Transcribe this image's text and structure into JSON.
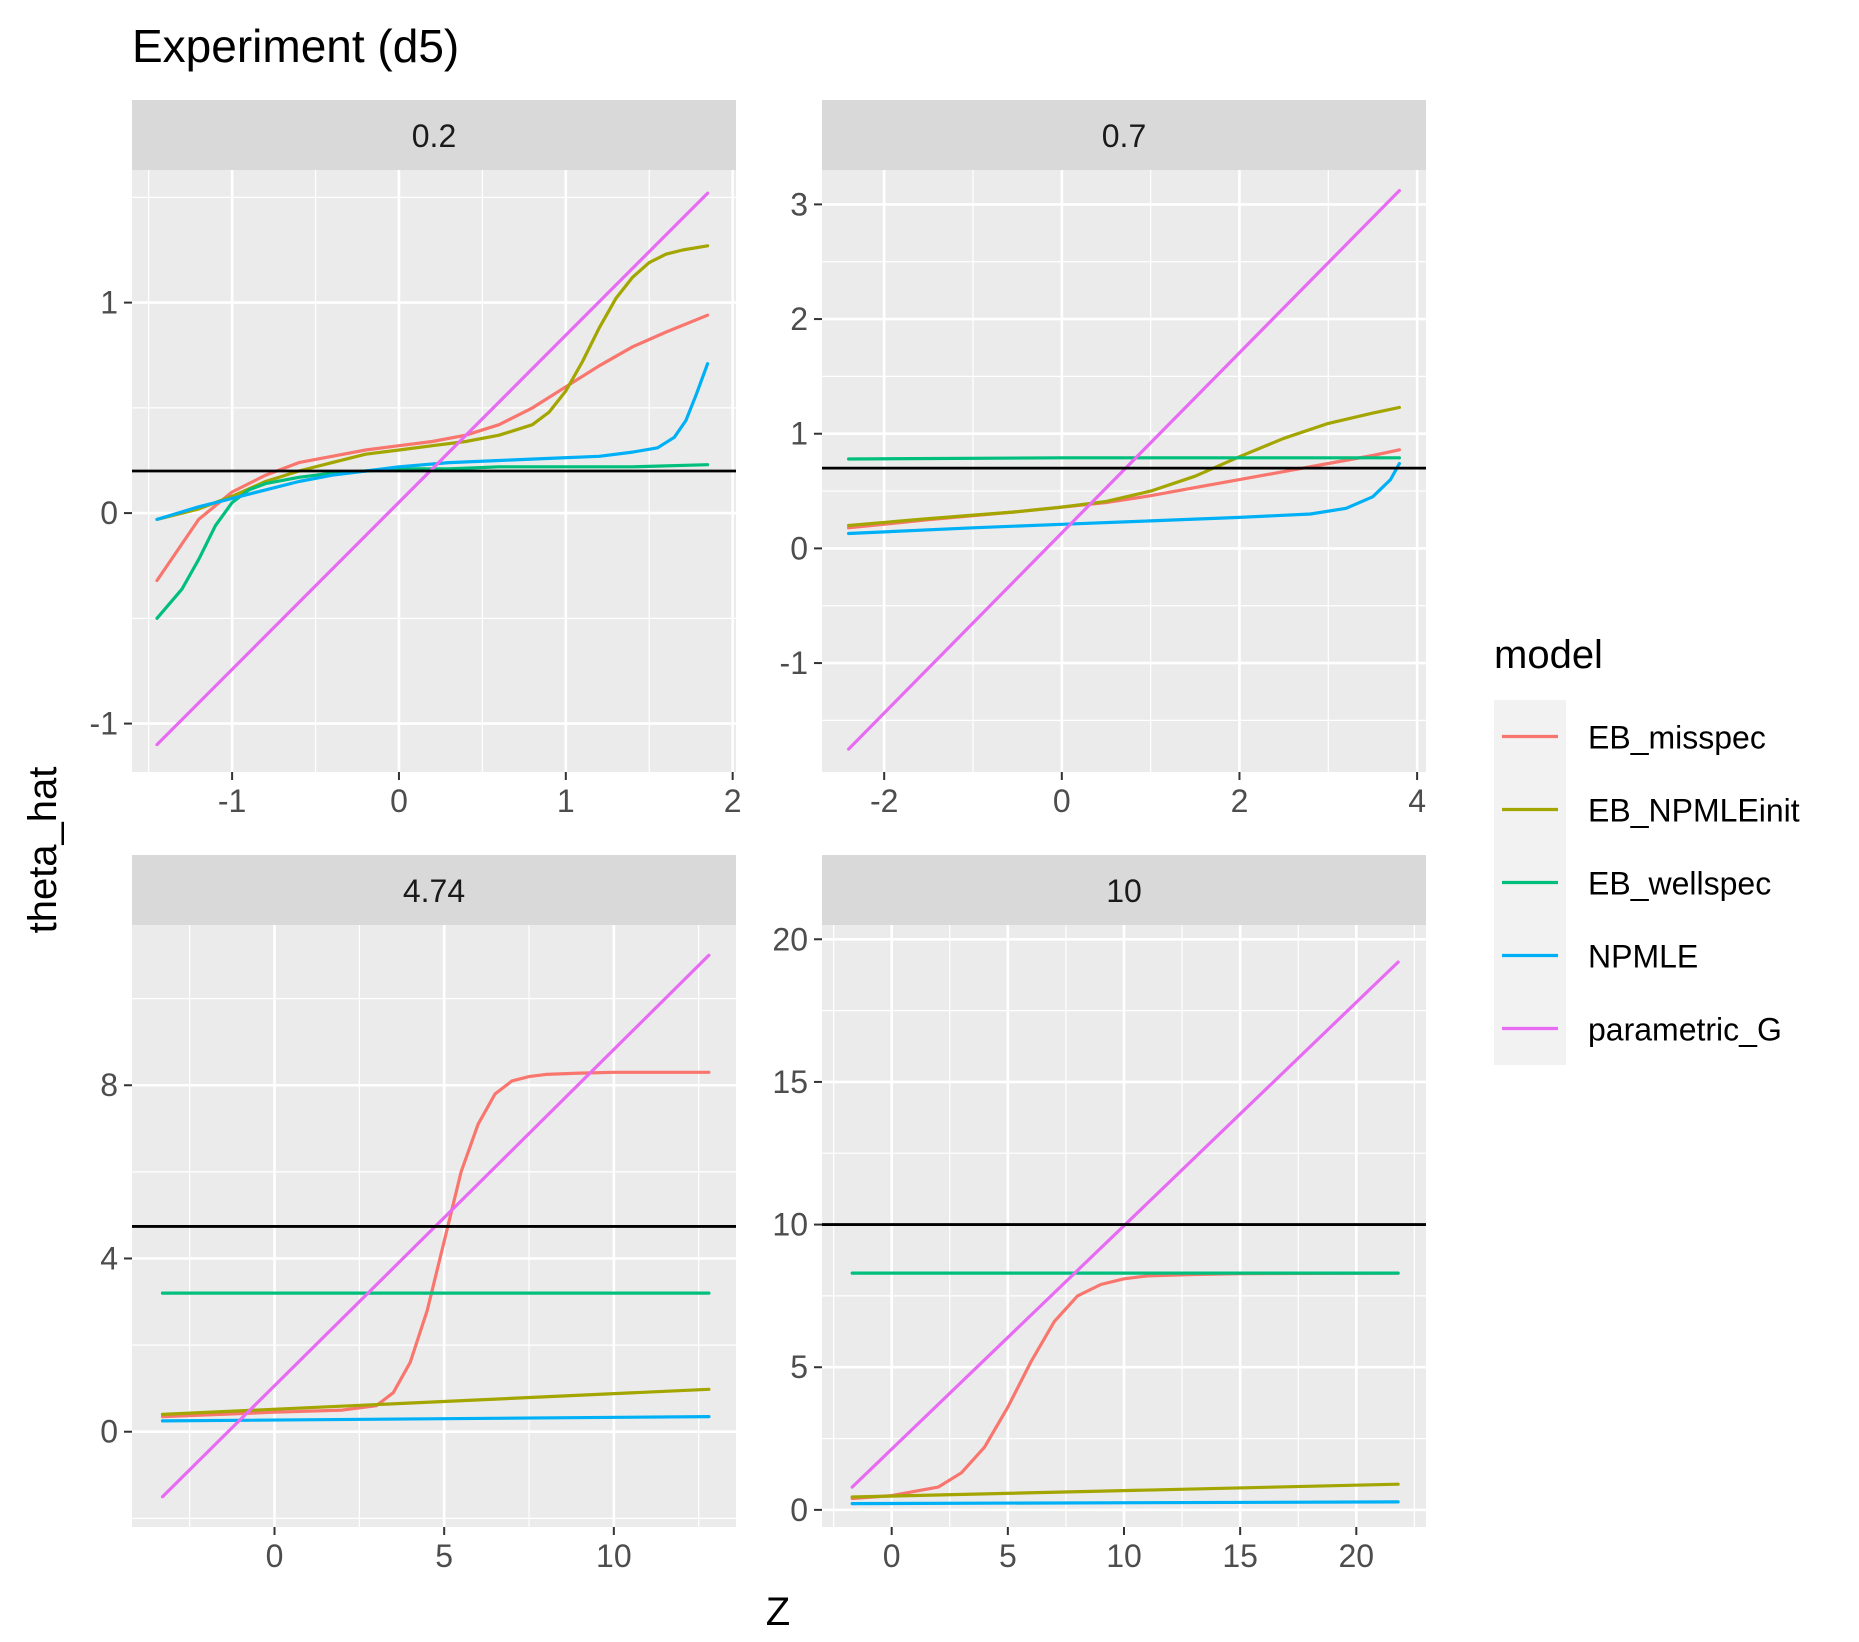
{
  "title": "Experiment (d5)",
  "xlabel": "Z",
  "ylabel": "theta_hat",
  "legend": {
    "title": "model",
    "placement": "right",
    "entries": [
      {
        "name": "EB_misspec",
        "color": "#F8766D"
      },
      {
        "name": "EB_NPMLEinit",
        "color": "#A3A500"
      },
      {
        "name": "EB_wellspec",
        "color": "#00BF7D"
      },
      {
        "name": "NPMLE",
        "color": "#00B0F6"
      },
      {
        "name": "parametric_G",
        "color": "#E76BF3"
      }
    ]
  },
  "colors": {
    "panel_background": "#EBEBEB",
    "strip_background": "#D9D9D9",
    "grid": "#FFFFFF",
    "reference_line": "#000000",
    "axis_text": "#4D4D4D"
  },
  "chart_data": [
    {
      "type": "line",
      "facet_label": "0.2",
      "grid": true,
      "xlim": [
        -1.6,
        2.02
      ],
      "ylim": [
        -1.23,
        1.63
      ],
      "xticks": [
        -1,
        0,
        1,
        2
      ],
      "yticks": [
        -1,
        0,
        1
      ],
      "hline": 0.2,
      "series": [
        {
          "name": "EB_misspec",
          "x": [
            -1.45,
            -1.2,
            -1.0,
            -0.8,
            -0.6,
            -0.4,
            -0.2,
            0.0,
            0.2,
            0.4,
            0.6,
            0.8,
            1.0,
            1.2,
            1.4,
            1.6,
            1.85
          ],
          "y": [
            -0.32,
            -0.03,
            0.1,
            0.18,
            0.24,
            0.27,
            0.3,
            0.32,
            0.34,
            0.37,
            0.42,
            0.5,
            0.6,
            0.7,
            0.79,
            0.86,
            0.94
          ]
        },
        {
          "name": "EB_NPMLEinit",
          "x": [
            -1.45,
            -1.2,
            -1.0,
            -0.8,
            -0.6,
            -0.4,
            -0.2,
            0.0,
            0.2,
            0.4,
            0.6,
            0.8,
            0.9,
            1.0,
            1.1,
            1.2,
            1.3,
            1.4,
            1.5,
            1.6,
            1.7,
            1.85
          ],
          "y": [
            -0.03,
            0.02,
            0.08,
            0.15,
            0.2,
            0.24,
            0.28,
            0.3,
            0.32,
            0.34,
            0.37,
            0.42,
            0.48,
            0.58,
            0.72,
            0.88,
            1.02,
            1.12,
            1.19,
            1.23,
            1.25,
            1.27
          ]
        },
        {
          "name": "EB_wellspec",
          "x": [
            -1.45,
            -1.3,
            -1.2,
            -1.1,
            -1.0,
            -0.9,
            -0.8,
            -0.6,
            -0.4,
            -0.2,
            0.0,
            0.3,
            0.6,
            1.0,
            1.4,
            1.85
          ],
          "y": [
            -0.5,
            -0.36,
            -0.22,
            -0.06,
            0.05,
            0.11,
            0.14,
            0.17,
            0.19,
            0.2,
            0.21,
            0.21,
            0.22,
            0.22,
            0.22,
            0.23
          ]
        },
        {
          "name": "NPMLE",
          "x": [
            -1.45,
            -1.2,
            -1.0,
            -0.8,
            -0.6,
            -0.4,
            -0.2,
            0.0,
            0.3,
            0.6,
            0.9,
            1.2,
            1.4,
            1.55,
            1.65,
            1.72,
            1.78,
            1.85
          ],
          "y": [
            -0.03,
            0.03,
            0.07,
            0.11,
            0.15,
            0.18,
            0.2,
            0.22,
            0.24,
            0.25,
            0.26,
            0.27,
            0.29,
            0.31,
            0.36,
            0.44,
            0.56,
            0.71
          ]
        },
        {
          "name": "parametric_G",
          "x": [
            -1.45,
            1.85
          ],
          "y": [
            -1.1,
            1.52
          ]
        }
      ]
    },
    {
      "type": "line",
      "facet_label": "0.7",
      "grid": true,
      "xlim": [
        -2.7,
        4.1
      ],
      "ylim": [
        -1.95,
        3.3
      ],
      "xticks": [
        -2,
        0,
        2,
        4
      ],
      "yticks": [
        -1,
        0,
        1,
        2,
        3
      ],
      "hline": 0.7,
      "series": [
        {
          "name": "EB_misspec",
          "x": [
            -2.4,
            -1.5,
            -0.5,
            0.0,
            0.5,
            1.0,
            1.5,
            2.0,
            2.5,
            3.0,
            3.5,
            3.8
          ],
          "y": [
            0.18,
            0.25,
            0.32,
            0.36,
            0.4,
            0.46,
            0.53,
            0.6,
            0.67,
            0.74,
            0.81,
            0.86
          ]
        },
        {
          "name": "EB_NPMLEinit",
          "x": [
            -2.4,
            -1.5,
            -0.5,
            0.0,
            0.5,
            1.0,
            1.5,
            2.0,
            2.5,
            3.0,
            3.5,
            3.8
          ],
          "y": [
            0.2,
            0.26,
            0.32,
            0.36,
            0.41,
            0.5,
            0.63,
            0.8,
            0.96,
            1.09,
            1.18,
            1.23
          ]
        },
        {
          "name": "EB_wellspec",
          "x": [
            -2.4,
            0.0,
            2.0,
            3.8
          ],
          "y": [
            0.78,
            0.79,
            0.79,
            0.79
          ]
        },
        {
          "name": "NPMLE",
          "x": [
            -2.4,
            -1.0,
            0.0,
            1.0,
            2.0,
            2.8,
            3.2,
            3.5,
            3.7,
            3.8
          ],
          "y": [
            0.13,
            0.18,
            0.21,
            0.24,
            0.27,
            0.3,
            0.35,
            0.45,
            0.6,
            0.74
          ]
        },
        {
          "name": "parametric_G",
          "x": [
            -2.4,
            3.8
          ],
          "y": [
            -1.75,
            3.12
          ]
        }
      ]
    },
    {
      "type": "line",
      "facet_label": "4.74",
      "grid": true,
      "xlim": [
        -4.2,
        13.6
      ],
      "ylim": [
        -2.2,
        11.7
      ],
      "xticks": [
        0,
        5,
        10
      ],
      "yticks": [
        0,
        4,
        8
      ],
      "hline": 4.74,
      "series": [
        {
          "name": "EB_misspec",
          "x": [
            -3.3,
            0.0,
            2.0,
            3.0,
            3.5,
            4.0,
            4.5,
            5.0,
            5.5,
            6.0,
            6.5,
            7.0,
            7.5,
            8.0,
            9.0,
            10.0,
            12.8
          ],
          "y": [
            0.35,
            0.45,
            0.5,
            0.6,
            0.9,
            1.6,
            2.8,
            4.4,
            6.0,
            7.1,
            7.8,
            8.1,
            8.2,
            8.25,
            8.28,
            8.3,
            8.3
          ]
        },
        {
          "name": "EB_NPMLEinit",
          "x": [
            -3.3,
            12.8
          ],
          "y": [
            0.4,
            0.98
          ]
        },
        {
          "name": "EB_wellspec",
          "x": [
            -3.3,
            12.8
          ],
          "y": [
            3.2,
            3.2
          ]
        },
        {
          "name": "NPMLE",
          "x": [
            -3.3,
            12.8
          ],
          "y": [
            0.25,
            0.35
          ]
        },
        {
          "name": "parametric_G",
          "x": [
            -3.3,
            12.8
          ],
          "y": [
            -1.5,
            11.0
          ]
        }
      ]
    },
    {
      "type": "line",
      "facet_label": "10",
      "grid": true,
      "xlim": [
        -3.0,
        23.0
      ],
      "ylim": [
        -0.6,
        20.5
      ],
      "xticks": [
        0,
        5,
        10,
        15,
        20
      ],
      "yticks": [
        0,
        5,
        10,
        15,
        20
      ],
      "hline": 10,
      "series": [
        {
          "name": "EB_misspec",
          "x": [
            -1.7,
            0.0,
            2.0,
            3.0,
            4.0,
            5.0,
            6.0,
            7.0,
            8.0,
            9.0,
            10.0,
            11.0,
            13.0,
            15.0,
            21.8
          ],
          "y": [
            0.4,
            0.5,
            0.8,
            1.3,
            2.2,
            3.6,
            5.2,
            6.6,
            7.5,
            7.9,
            8.1,
            8.2,
            8.25,
            8.28,
            8.3
          ]
        },
        {
          "name": "EB_NPMLEinit",
          "x": [
            -1.7,
            21.8
          ],
          "y": [
            0.45,
            0.9
          ]
        },
        {
          "name": "EB_wellspec",
          "x": [
            -1.7,
            21.8
          ],
          "y": [
            8.3,
            8.3
          ]
        },
        {
          "name": "NPMLE",
          "x": [
            -1.7,
            21.8
          ],
          "y": [
            0.22,
            0.28
          ]
        },
        {
          "name": "parametric_G",
          "x": [
            -1.7,
            21.8
          ],
          "y": [
            0.8,
            19.2
          ]
        }
      ]
    }
  ]
}
